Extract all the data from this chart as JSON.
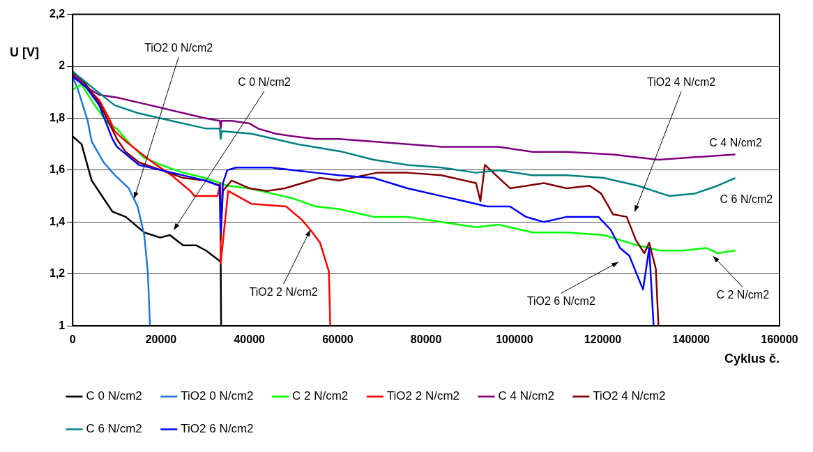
{
  "chart_data": {
    "type": "line",
    "xlabel": "Cyklus č.",
    "ylabel": "U [V]",
    "xlim": [
      0,
      160000
    ],
    "xticks": [
      0,
      20000,
      40000,
      60000,
      80000,
      100000,
      120000,
      140000,
      160000
    ],
    "ylim": [
      1,
      2.2
    ],
    "yticks": [
      {
        "value": 1,
        "label": "1"
      },
      {
        "value": 1.2,
        "label": "1,2"
      },
      {
        "value": 1.4,
        "label": "1,4"
      },
      {
        "value": 1.6,
        "label": "1,6"
      },
      {
        "value": 1.8,
        "label": "1,8"
      },
      {
        "value": 2,
        "label": "2"
      },
      {
        "value": 2.2,
        "label": "2,2"
      }
    ],
    "grid": "y",
    "legend": "bottom",
    "marker": "none",
    "line_style": "solid",
    "series": [
      {
        "name": "C 0 N/cm2",
        "color": "#000000",
        "x": [
          0,
          2000,
          4300,
          9000,
          12000,
          16200,
          19800,
          22000,
          25000,
          28000,
          30200,
          33300,
          33500,
          33600
        ],
        "values": [
          1.73,
          1.7,
          1.56,
          1.44,
          1.42,
          1.36,
          1.34,
          1.35,
          1.31,
          1.31,
          1.29,
          1.25,
          1.26,
          1.0
        ]
      },
      {
        "name": "TiO2 0 N/cm2",
        "color": "#1f78d8",
        "x": [
          0,
          1200,
          3400,
          4300,
          7000,
          9600,
          12700,
          14700,
          16200,
          17000,
          17500
        ],
        "values": [
          1.96,
          1.91,
          1.79,
          1.71,
          1.63,
          1.58,
          1.53,
          1.46,
          1.35,
          1.21,
          1.0
        ]
      },
      {
        "name": "C 2 N/cm2",
        "color": "#00ff00",
        "x": [
          0,
          2000,
          5000,
          8000,
          10000,
          13000,
          16000,
          20000,
          25000,
          30000,
          35000,
          40000,
          45000,
          50000,
          55000,
          60300,
          68100,
          75800,
          83500,
          91300,
          96400,
          104100,
          111800,
          120200,
          127900,
          133000,
          138100,
          143400,
          146000,
          150000
        ],
        "values": [
          1.91,
          1.93,
          1.85,
          1.78,
          1.76,
          1.7,
          1.65,
          1.62,
          1.59,
          1.57,
          1.54,
          1.53,
          1.51,
          1.49,
          1.46,
          1.45,
          1.42,
          1.42,
          1.4,
          1.38,
          1.39,
          1.36,
          1.36,
          1.35,
          1.31,
          1.29,
          1.29,
          1.3,
          1.28,
          1.29
        ]
      },
      {
        "name": "TiO2 2 N/cm2",
        "color": "#ff0000",
        "x": [
          0,
          3000,
          6000,
          8500,
          9500,
          12100,
          17300,
          19800,
          22400,
          26600,
          27600,
          32800,
          33400,
          33500,
          35200,
          40500,
          48300,
          51800,
          53800,
          56000,
          58000,
          58300
        ],
        "values": [
          1.97,
          1.92,
          1.87,
          1.79,
          1.75,
          1.71,
          1.64,
          1.61,
          1.58,
          1.52,
          1.5,
          1.5,
          1.55,
          1.24,
          1.52,
          1.47,
          1.46,
          1.41,
          1.37,
          1.32,
          1.21,
          1.0
        ]
      },
      {
        "name": "C 4 N/cm2",
        "color": "#800080",
        "x": [
          0,
          3000,
          6000,
          10000,
          15000,
          20000,
          25000,
          30000,
          33300,
          33500,
          33700,
          36000,
          40000,
          42000,
          46000,
          50000,
          55000,
          60300,
          68100,
          75800,
          83500,
          91300,
          96400,
          104100,
          111800,
          122200,
          132600,
          140900,
          150000
        ],
        "values": [
          1.97,
          1.92,
          1.89,
          1.88,
          1.86,
          1.84,
          1.82,
          1.8,
          1.79,
          1.76,
          1.79,
          1.79,
          1.78,
          1.76,
          1.74,
          1.73,
          1.72,
          1.72,
          1.71,
          1.7,
          1.69,
          1.69,
          1.69,
          1.67,
          1.67,
          1.66,
          1.64,
          1.65,
          1.66
        ]
      },
      {
        "name": "TiO2 4 N/cm2",
        "color": "#800000",
        "x": [
          0,
          3000,
          6000,
          8000,
          10000,
          12000,
          15000,
          20000,
          25000,
          30000,
          33300,
          33500,
          34000,
          36000,
          40000,
          44000,
          48000,
          52000,
          56000,
          60300,
          68900,
          75800,
          83500,
          91300,
          92300,
          93300,
          99000,
          106700,
          111800,
          117000,
          119600,
          122300,
          125400,
          127500,
          129400,
          130500,
          132000,
          132600
        ],
        "values": [
          1.98,
          1.93,
          1.86,
          1.79,
          1.72,
          1.67,
          1.63,
          1.6,
          1.57,
          1.56,
          1.54,
          1.33,
          1.52,
          1.56,
          1.53,
          1.52,
          1.53,
          1.55,
          1.57,
          1.56,
          1.59,
          1.59,
          1.58,
          1.55,
          1.48,
          1.62,
          1.53,
          1.55,
          1.53,
          1.54,
          1.51,
          1.43,
          1.42,
          1.33,
          1.28,
          1.32,
          1.22,
          1.0
        ]
      },
      {
        "name": "C 6 N/cm2",
        "color": "#008080",
        "x": [
          0,
          4300,
          9500,
          14700,
          22400,
          30200,
          33300,
          33500,
          33700,
          40500,
          50900,
          61200,
          68100,
          75800,
          83500,
          91300,
          96400,
          104100,
          111800,
          120200,
          127900,
          135100,
          140900,
          146000,
          150000
        ],
        "values": [
          1.98,
          1.92,
          1.85,
          1.82,
          1.79,
          1.76,
          1.76,
          1.72,
          1.75,
          1.74,
          1.7,
          1.67,
          1.64,
          1.62,
          1.61,
          1.59,
          1.6,
          1.58,
          1.58,
          1.57,
          1.54,
          1.5,
          1.51,
          1.54,
          1.57
        ]
      },
      {
        "name": "TiO2 6 N/cm2",
        "color": "#0000ff",
        "x": [
          0,
          3000,
          6000,
          9000,
          10000,
          15000,
          20000,
          25000,
          30000,
          33300,
          33500,
          34000,
          35000,
          37000,
          40000,
          45000,
          50000,
          55000,
          60300,
          68100,
          75800,
          83500,
          88700,
          93800,
          99000,
          102600,
          106700,
          111800,
          119000,
          121800,
          123900,
          126000,
          129100,
          130500,
          131500
        ],
        "values": [
          1.96,
          1.92,
          1.85,
          1.72,
          1.69,
          1.62,
          1.6,
          1.58,
          1.56,
          1.54,
          1.36,
          1.55,
          1.6,
          1.61,
          1.61,
          1.61,
          1.6,
          1.59,
          1.58,
          1.57,
          1.53,
          1.5,
          1.48,
          1.46,
          1.46,
          1.42,
          1.4,
          1.42,
          1.42,
          1.37,
          1.3,
          1.27,
          1.14,
          1.3,
          1.0
        ]
      }
    ],
    "annotations": [
      {
        "text": "TiO2 0 N/cm2",
        "x": 13900,
        "y": 1.49
      },
      "C 0 N/cm2",
      {
        "text": "TiO2 2 N/cm2",
        "x": 53800,
        "y": 1.37
      },
      "TiO2 4 N/cm2",
      "C 4 N/cm2",
      "C 6 N/cm2",
      "TiO2 6 N/cm2",
      "C 2 N/cm2"
    ]
  }
}
